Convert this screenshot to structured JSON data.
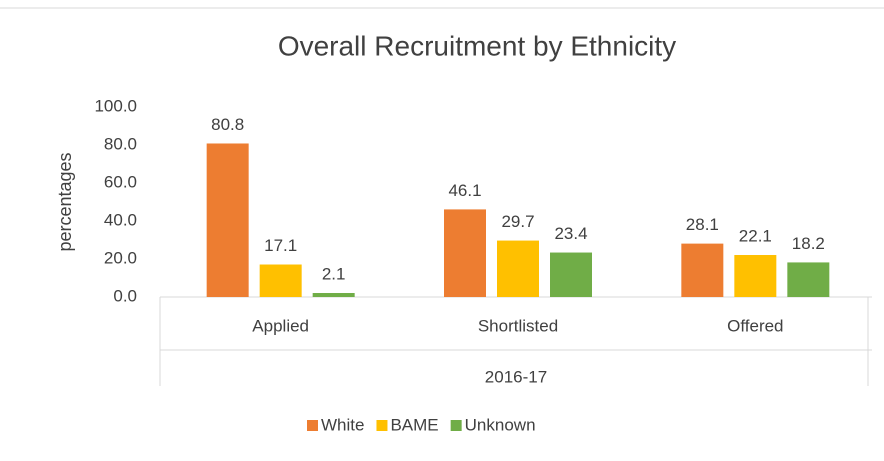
{
  "chart_data": {
    "type": "bar",
    "title": "Overall Recruitment by Ethnicity",
    "y_label": "percentages",
    "categories": [
      "Applied",
      "Shortlisted",
      "Offered"
    ],
    "group_label": "2016-17",
    "series": [
      {
        "name": "White",
        "color": "#ed7d31",
        "values": [
          80.8,
          46.1,
          28.1
        ]
      },
      {
        "name": "BAME",
        "color": "#ffc000",
        "values": [
          17.1,
          29.7,
          22.1
        ]
      },
      {
        "name": "Unknown",
        "color": "#70ad47",
        "values": [
          2.1,
          23.4,
          18.2
        ]
      }
    ],
    "ylim": [
      0,
      100
    ],
    "yticks": [
      {
        "value": 0,
        "label": "0.0"
      },
      {
        "value": 20,
        "label": "20.0"
      },
      {
        "value": 40,
        "label": "40.0"
      },
      {
        "value": 60,
        "label": "60.0"
      },
      {
        "value": 80,
        "label": "80.0"
      },
      {
        "value": 100,
        "label": "100.0"
      }
    ],
    "grid": false,
    "legend": "bottom"
  }
}
